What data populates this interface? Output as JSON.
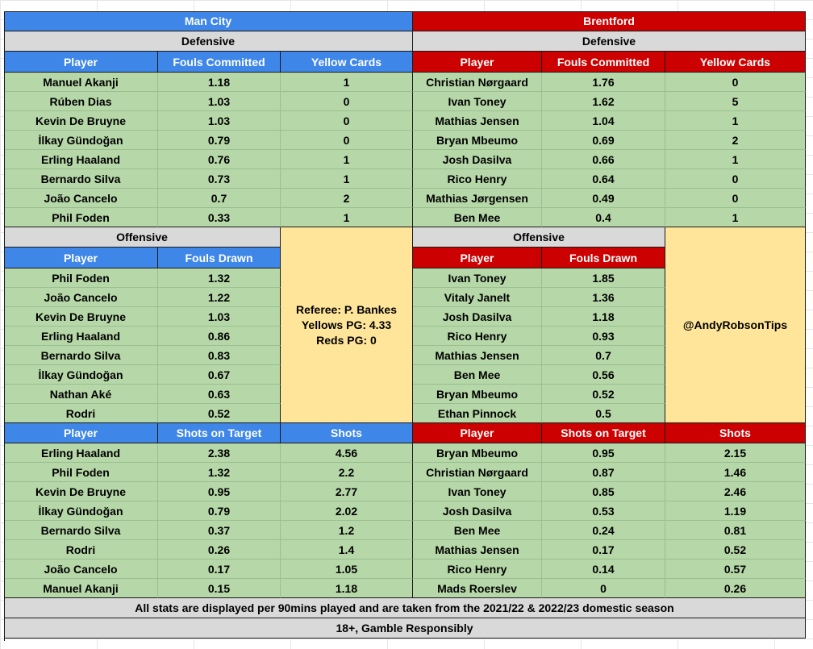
{
  "teams": {
    "left": {
      "name": "Man City"
    },
    "right": {
      "name": "Brentford"
    }
  },
  "sections": {
    "defensive": "Defensive",
    "offensive": "Offensive"
  },
  "headers": {
    "player": "Player",
    "fouls_committed": "Fouls Committed",
    "yellow_cards": "Yellow Cards",
    "fouls_drawn": "Fouls Drawn",
    "shots_on_target": "Shots on Target",
    "shots": "Shots"
  },
  "left_defensive": [
    [
      "Manuel Akanji",
      "1.18",
      "1"
    ],
    [
      "Rúben Dias",
      "1.03",
      "0"
    ],
    [
      "Kevin De Bruyne",
      "1.03",
      "0"
    ],
    [
      "İlkay Gündoğan",
      "0.79",
      "0"
    ],
    [
      "Erling Haaland",
      "0.76",
      "1"
    ],
    [
      "Bernardo Silva",
      "0.73",
      "1"
    ],
    [
      "João Cancelo",
      "0.7",
      "2"
    ],
    [
      "Phil Foden",
      "0.33",
      "1"
    ]
  ],
  "right_defensive": [
    [
      "Christian Nørgaard",
      "1.76",
      "0"
    ],
    [
      "Ivan Toney",
      "1.62",
      "5"
    ],
    [
      "Mathias Jensen",
      "1.04",
      "1"
    ],
    [
      "Bryan Mbeumo",
      "0.69",
      "2"
    ],
    [
      "Josh Dasilva",
      "0.66",
      "1"
    ],
    [
      "Rico Henry",
      "0.64",
      "0"
    ],
    [
      "Mathias Jørgensen",
      "0.49",
      "0"
    ],
    [
      "Ben Mee",
      "0.4",
      "1"
    ]
  ],
  "left_offensive": [
    [
      "Phil Foden",
      "1.32"
    ],
    [
      "João Cancelo",
      "1.22"
    ],
    [
      "Kevin De Bruyne",
      "1.03"
    ],
    [
      "Erling Haaland",
      "0.86"
    ],
    [
      "Bernardo Silva",
      "0.83"
    ],
    [
      "İlkay Gündoğan",
      "0.67"
    ],
    [
      "Nathan Aké",
      "0.63"
    ],
    [
      "Rodri",
      "0.52"
    ]
  ],
  "right_offensive": [
    [
      "Ivan Toney",
      "1.85"
    ],
    [
      "Vitaly Janelt",
      "1.36"
    ],
    [
      "Josh Dasilva",
      "1.18"
    ],
    [
      "Rico Henry",
      "0.93"
    ],
    [
      "Mathias Jensen",
      "0.7"
    ],
    [
      "Ben Mee",
      "0.56"
    ],
    [
      "Bryan Mbeumo",
      "0.52"
    ],
    [
      "Ethan Pinnock",
      "0.5"
    ]
  ],
  "left_shots": [
    [
      "Erling Haaland",
      "2.38",
      "4.56"
    ],
    [
      "Phil Foden",
      "1.32",
      "2.2"
    ],
    [
      "Kevin De Bruyne",
      "0.95",
      "2.77"
    ],
    [
      "İlkay Gündoğan",
      "0.79",
      "2.02"
    ],
    [
      "Bernardo Silva",
      "0.37",
      "1.2"
    ],
    [
      "Rodri",
      "0.26",
      "1.4"
    ],
    [
      "João Cancelo",
      "0.17",
      "1.05"
    ],
    [
      "Manuel Akanji",
      "0.15",
      "1.18"
    ]
  ],
  "right_shots": [
    [
      "Bryan Mbeumo",
      "0.95",
      "2.15"
    ],
    [
      "Christian Nørgaard",
      "0.87",
      "1.46"
    ],
    [
      "Ivan Toney",
      "0.85",
      "2.46"
    ],
    [
      "Josh Dasilva",
      "0.53",
      "1.19"
    ],
    [
      "Ben Mee",
      "0.24",
      "0.81"
    ],
    [
      "Mathias Jensen",
      "0.17",
      "0.52"
    ],
    [
      "Rico Henry",
      "0.14",
      "0.57"
    ],
    [
      "Mads Roerslev",
      "0",
      "0.26"
    ]
  ],
  "referee_box": {
    "referee": "Referee: P. Bankes",
    "yellows": "Yellows PG: 4.33",
    "reds": "Reds PG: 0"
  },
  "handle": "@AndyRobsonTips",
  "footer": {
    "note": "All stats are displayed per 90mins played and are taken from the 2021/22 & 2022/23 domestic season",
    "disclaimer": "18+, Gamble Responsibly"
  },
  "colors": {
    "man_city_header": "#3e86e8",
    "brentford_header": "#cc0000",
    "section_gray": "#d9d9d9",
    "data_green": "#b6d7a8",
    "info_yellow": "#ffe599"
  }
}
